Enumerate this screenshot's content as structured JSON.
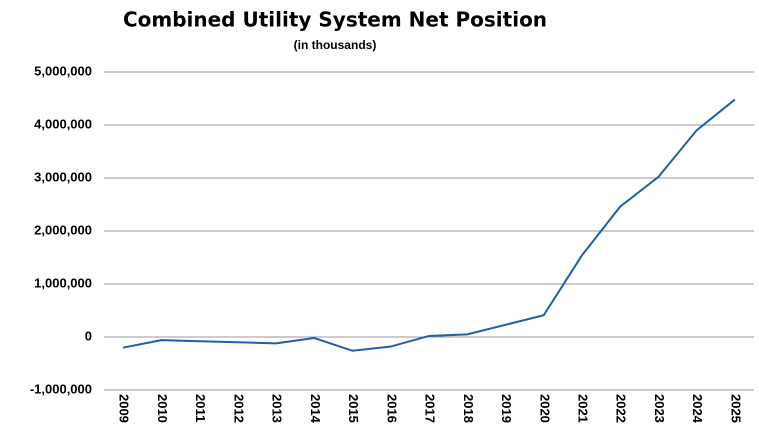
{
  "chart_data": {
    "type": "line",
    "title": "Combined Utility System Net Position",
    "subtitle": "(in thousands)",
    "categories": [
      "2009",
      "2010",
      "2011",
      "2012",
      "2013",
      "2014",
      "2015",
      "2016",
      "2017",
      "2018",
      "2019",
      "2020",
      "2021",
      "2022",
      "2023",
      "2024",
      "2025"
    ],
    "series": [
      {
        "color": "#1f5fa8",
        "values": [
          -200000,
          -60000,
          -80000,
          -100000,
          -120000,
          -20000,
          -260000,
          -180000,
          20000,
          50000,
          230000,
          410000,
          1540000,
          2460000,
          3020000,
          3900000,
          4480000
        ]
      }
    ],
    "ylim": [
      -1000000,
      5000000
    ],
    "yticks": [
      {
        "value": -1000000,
        "label": "-1,000,000"
      },
      0,
      {
        "value": 1000000,
        "label": "1,000,000"
      },
      {
        "value": 2000000,
        "label": "2,000,000"
      },
      {
        "value": 3000000,
        "label": "3,000,000"
      },
      {
        "value": 4000000,
        "label": "4,000,000"
      },
      {
        "value": 5000000,
        "label": "5,000,000"
      }
    ],
    "grid": true
  }
}
